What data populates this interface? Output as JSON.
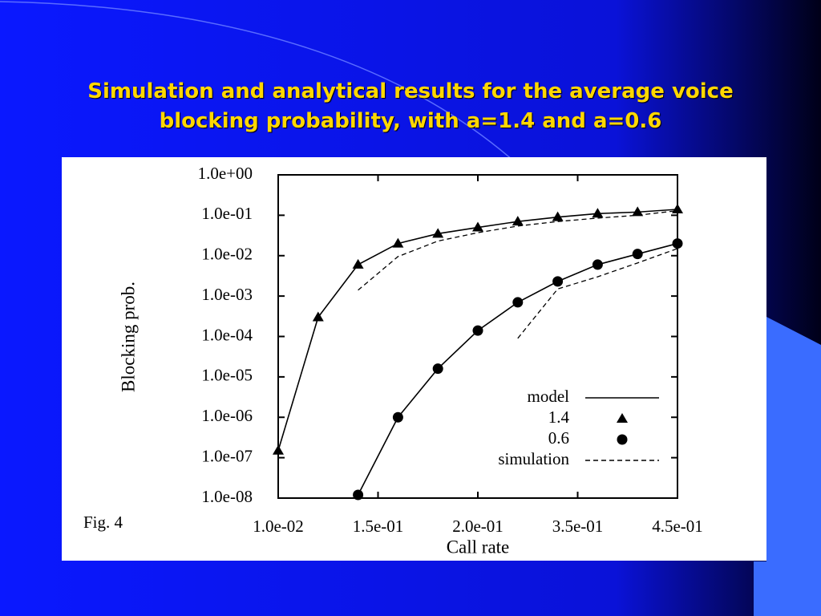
{
  "slide_title": "Simulation and analytical results for the average voice blocking probability, with a=1.4 and a=0.6",
  "figure_caption": "Fig. 4",
  "chart_data": {
    "type": "line",
    "xlabel": "Call rate",
    "ylabel": "Blocking prob.",
    "x": [
      0,
      1,
      2,
      3,
      4,
      5,
      6,
      7,
      8,
      9,
      10
    ],
    "xlim": [
      0,
      10
    ],
    "xticks": [
      {
        "value": 0,
        "label": "1.0e-02"
      },
      {
        "value": 2.5,
        "label": "1.5e-01"
      },
      {
        "value": 5,
        "label": "2.0e-01"
      },
      {
        "value": 7.5,
        "label": "3.5e-01"
      },
      {
        "value": 10,
        "label": "4.5e-01"
      }
    ],
    "ylim": [
      1e-08,
      1
    ],
    "yscale": "log",
    "yticks": [
      {
        "value": 1,
        "label": "1.0e+00"
      },
      {
        "value": 0.1,
        "label": "1.0e-01"
      },
      {
        "value": 0.01,
        "label": "1.0e-02"
      },
      {
        "value": 0.001,
        "label": "1.0e-03"
      },
      {
        "value": 0.0001,
        "label": "1.0e-04"
      },
      {
        "value": 1e-05,
        "label": "1.0e-05"
      },
      {
        "value": 1e-06,
        "label": "1.0e-06"
      },
      {
        "value": 1e-07,
        "label": "1.0e-07"
      },
      {
        "value": 1e-08,
        "label": "1.0e-08"
      }
    ],
    "legend": [
      {
        "label": "model",
        "line": "solid"
      },
      {
        "label": "1.4",
        "marker": "triangle"
      },
      {
        "label": "0.6",
        "marker": "circle"
      },
      {
        "label": "simulation",
        "line": "dashed"
      }
    ],
    "series": [
      {
        "line": "solid",
        "marker": "triangle",
        "color": "#000000",
        "values": [
          1.5e-07,
          0.0003,
          0.006,
          0.02,
          0.035,
          0.05,
          0.07,
          0.09,
          0.11,
          0.12,
          0.14
        ]
      },
      {
        "line": "solid",
        "marker": "circle",
        "color": "#000000",
        "values": [
          null,
          null,
          1.2e-08,
          1e-06,
          1.6e-05,
          0.00014,
          0.0007,
          0.0023,
          0.006,
          0.011,
          0.02
        ]
      },
      {
        "line": "dashed",
        "color": "#000000",
        "values": [
          null,
          null,
          0.0014,
          0.0095,
          0.023,
          0.037,
          0.054,
          0.07,
          0.085,
          0.1,
          0.13
        ]
      },
      {
        "line": "dashed",
        "color": "#000000",
        "values": [
          null,
          null,
          null,
          null,
          null,
          null,
          9e-05,
          0.0015,
          0.003,
          0.0066,
          0.015
        ]
      }
    ]
  }
}
